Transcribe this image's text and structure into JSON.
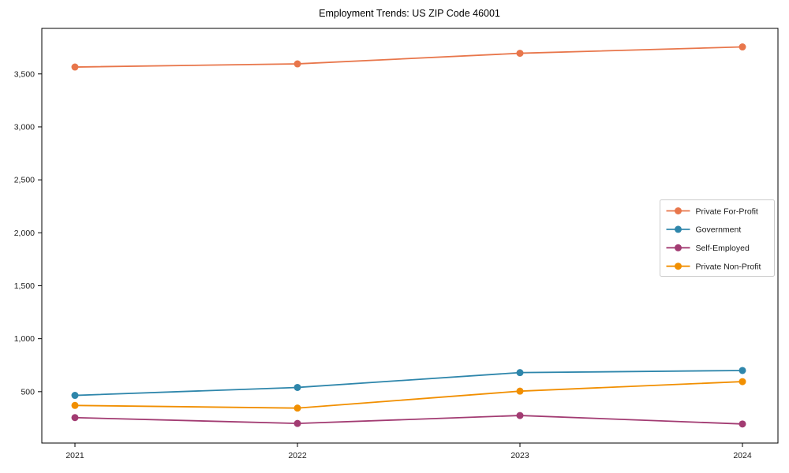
{
  "page": {
    "title": "Employment Trends: US ZIP Code 46001"
  },
  "chart_data": {
    "type": "line",
    "title": "Employment Trends: US ZIP Code 46001",
    "xlabel": "",
    "ylabel": "",
    "categories": [
      "2021",
      "2022",
      "2023",
      "2024"
    ],
    "series": [
      {
        "name": "Private For-Profit",
        "color": "#E8764B",
        "values": [
          3565,
          3595,
          3695,
          3755
        ]
      },
      {
        "name": "Government",
        "color": "#2E86AB",
        "values": [
          465,
          540,
          680,
          700
        ]
      },
      {
        "name": "Self-Employed",
        "color": "#A23B72",
        "values": [
          255,
          200,
          275,
          195
        ]
      },
      {
        "name": "Private Non-Profit",
        "color": "#F18F01",
        "values": [
          370,
          345,
          505,
          595
        ]
      }
    ],
    "yticks": {
      "values": [
        500,
        1000,
        1500,
        2000,
        2500,
        3000,
        3500
      ],
      "labels": [
        "500",
        "1,000",
        "1,500",
        "2,000",
        "2,500",
        "3,000",
        "3,500"
      ]
    },
    "ylim": [
      15,
      3930
    ],
    "grid": false,
    "marker": "circle",
    "legend": {
      "position": "center-right",
      "background": "#ffffff",
      "border_color": "#cccccc"
    },
    "frame_color": "#000000"
  }
}
